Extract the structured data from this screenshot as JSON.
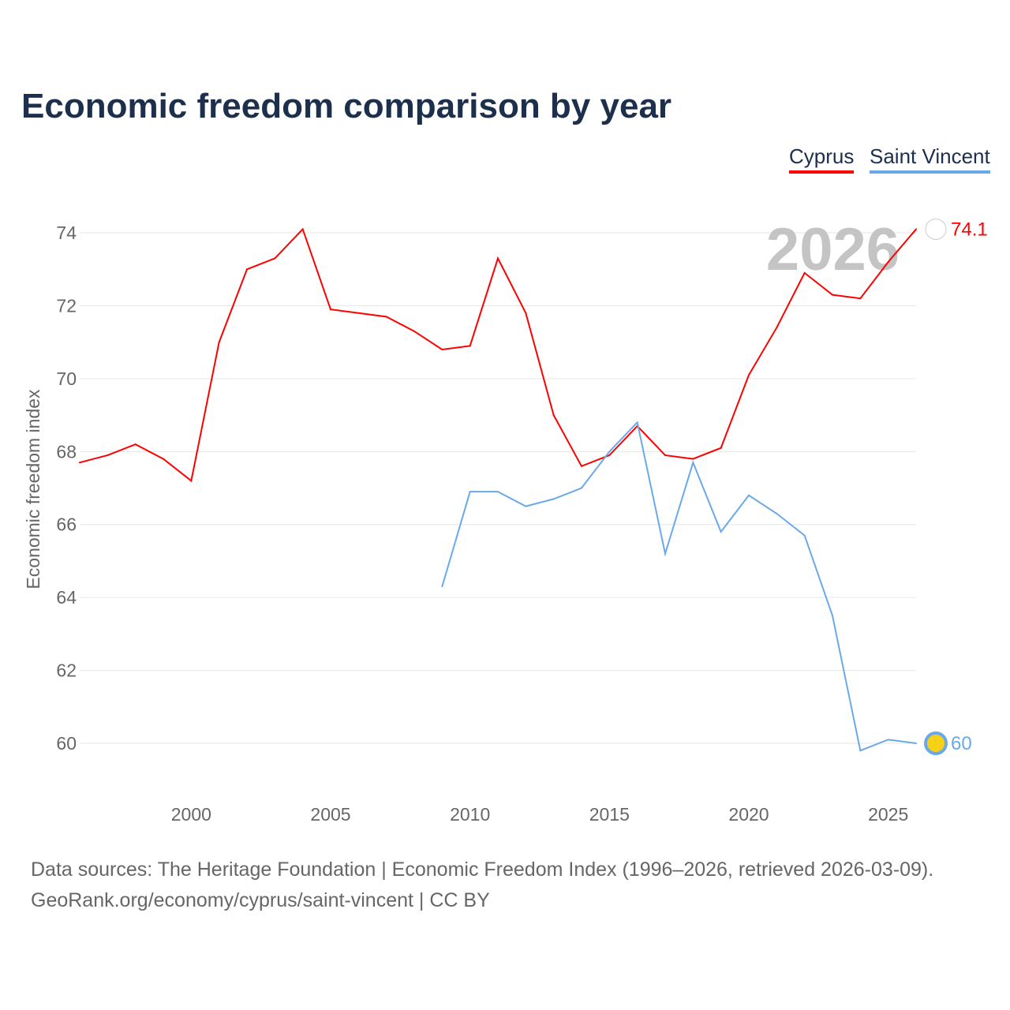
{
  "chart_data": {
    "type": "line",
    "title": "Economic freedom comparison by year",
    "xlabel": "",
    "ylabel": "Economic freedom index",
    "xlim": [
      1996,
      2026
    ],
    "ylim": [
      58.6,
      75
    ],
    "x_ticks": [
      2000,
      2005,
      2010,
      2015,
      2020,
      2025
    ],
    "y_ticks": [
      60,
      62,
      64,
      66,
      68,
      70,
      72,
      74
    ],
    "grid": true,
    "legend_position": "top-right",
    "year_watermark": "2026",
    "series": [
      {
        "name": "Cyprus",
        "color": "#ff0000",
        "end_label": "74.1",
        "x": [
          1996,
          1997,
          1998,
          1999,
          2000,
          2001,
          2002,
          2003,
          2004,
          2005,
          2006,
          2007,
          2008,
          2009,
          2010,
          2011,
          2012,
          2013,
          2014,
          2015,
          2016,
          2017,
          2018,
          2019,
          2020,
          2021,
          2022,
          2023,
          2024,
          2025,
          2026
        ],
        "values": [
          67.7,
          67.9,
          68.2,
          67.8,
          67.2,
          71.0,
          73.0,
          73.3,
          74.1,
          71.9,
          71.8,
          71.7,
          71.3,
          70.8,
          70.9,
          73.3,
          71.8,
          69.0,
          67.6,
          67.9,
          68.7,
          67.9,
          67.8,
          68.1,
          70.1,
          71.4,
          72.9,
          72.3,
          72.2,
          73.2,
          74.1
        ]
      },
      {
        "name": "Saint Vincent",
        "color": "#6aa9e9",
        "end_label": "60",
        "x": [
          2009,
          2010,
          2011,
          2012,
          2013,
          2014,
          2015,
          2016,
          2017,
          2018,
          2019,
          2020,
          2021,
          2022,
          2023,
          2024,
          2025,
          2026
        ],
        "values": [
          64.3,
          66.9,
          66.9,
          66.5,
          66.7,
          67.0,
          68.0,
          68.8,
          65.2,
          67.7,
          65.8,
          66.8,
          66.3,
          65.7,
          63.5,
          59.8,
          60.1,
          60.0
        ]
      }
    ]
  },
  "footer": {
    "line1": "Data sources: The Heritage Foundation | Economic Freedom Index (1996–2026, retrieved 2026-03-09).",
    "line2": "GeoRank.org/economy/cyprus/saint-vincent | CC BY"
  }
}
